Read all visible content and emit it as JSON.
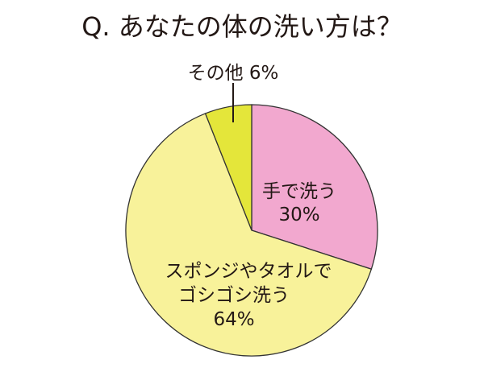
{
  "chart_data": {
    "type": "pie",
    "title": "Q. あなたの体の洗い方は？",
    "slices": [
      {
        "label_lines": [
          "手で洗う"
        ],
        "value": 30,
        "value_label": "30%",
        "color": "#f2a8cf"
      },
      {
        "label_lines": [
          "スポンジやタオルで",
          "ゴシゴシ洗う"
        ],
        "value": 64,
        "value_label": "64%",
        "color": "#f8f29a"
      },
      {
        "label_lines": [
          "その他 6%"
        ],
        "value": 6,
        "value_label": "",
        "color": "#e4e63a"
      }
    ],
    "start_angle_deg": 0,
    "direction": "clockwise",
    "stroke_color": "#333333",
    "legend": "none",
    "grid": false
  }
}
